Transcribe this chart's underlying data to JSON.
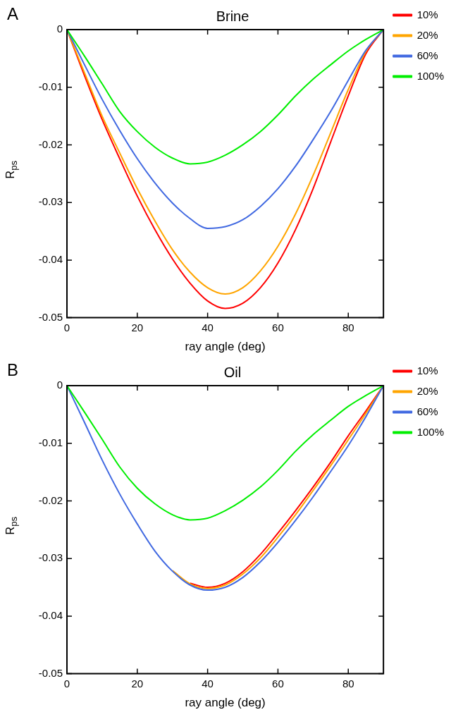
{
  "chart_data": [
    {
      "type": "line",
      "title": "Brine",
      "xlabel": "ray angle (deg)",
      "ylabel": "R$_{ps}$",
      "annotations": [
        "A"
      ],
      "x": [
        0,
        5,
        10,
        15,
        20,
        25,
        30,
        35,
        40,
        45,
        50,
        55,
        60,
        65,
        70,
        75,
        80,
        85,
        90
      ],
      "series": [
        {
          "name": "10%",
          "color": "#ff0000",
          "values": [
            0,
            -0.008,
            -0.0156,
            -0.0224,
            -0.0289,
            -0.0347,
            -0.0398,
            -0.044,
            -0.0471,
            -0.0484,
            -0.0475,
            -0.0448,
            -0.0405,
            -0.0347,
            -0.0276,
            -0.0195,
            -0.0115,
            -0.0042,
            0
          ]
        },
        {
          "name": "20%",
          "color": "#ffa500",
          "values": [
            0,
            -0.0075,
            -0.015,
            -0.0214,
            -0.0276,
            -0.0332,
            -0.0382,
            -0.0421,
            -0.0448,
            -0.0459,
            -0.0448,
            -0.0419,
            -0.0376,
            -0.032,
            -0.0253,
            -0.0179,
            -0.0104,
            -0.0038,
            0
          ]
        },
        {
          "name": "60%",
          "color": "#4169e1",
          "values": [
            0,
            -0.0061,
            -0.0121,
            -0.0175,
            -0.0224,
            -0.0266,
            -0.0301,
            -0.0328,
            -0.0345,
            -0.0342,
            -0.033,
            -0.0307,
            -0.0276,
            -0.0237,
            -0.0191,
            -0.0142,
            -0.0088,
            -0.0036,
            0
          ]
        },
        {
          "name": "100%",
          "color": "#00ee00",
          "values": [
            0,
            -0.0046,
            -0.0094,
            -0.0142,
            -0.0177,
            -0.0204,
            -0.0223,
            -0.0233,
            -0.023,
            -0.0218,
            -0.02,
            -0.0177,
            -0.0148,
            -0.0115,
            -0.0086,
            -0.0061,
            -0.0037,
            -0.0017,
            0
          ]
        }
      ],
      "xlim": [
        0,
        90
      ],
      "xticks": [
        0,
        20,
        40,
        60,
        80
      ],
      "ylim": [
        -0.05,
        0
      ],
      "yticks": [
        -0.05,
        -0.04,
        -0.03,
        -0.02,
        -0.01,
        0
      ],
      "grid": false,
      "legend": "right",
      "marker": "none",
      "line_style": "solid"
    },
    {
      "type": "line",
      "title": "Oil",
      "xlabel": "ray angle (deg)",
      "ylabel": "R$_{ps}$",
      "annotations": [
        "B"
      ],
      "x": [
        0,
        5,
        10,
        15,
        20,
        25,
        30,
        35,
        40,
        45,
        50,
        55,
        60,
        65,
        70,
        75,
        80,
        85,
        90
      ],
      "series": [
        {
          "name": "10%",
          "color": "#ff0000",
          "values": [
            null,
            null,
            null,
            null,
            null,
            null,
            null,
            -0.0343,
            -0.035,
            -0.0343,
            -0.0323,
            -0.0293,
            -0.0256,
            -0.0217,
            -0.0176,
            -0.0133,
            -0.0087,
            -0.0044,
            0
          ]
        },
        {
          "name": "20%",
          "color": "#ffa500",
          "values": [
            null,
            null,
            null,
            null,
            null,
            null,
            -0.0321,
            -0.0344,
            -0.0352,
            -0.0346,
            -0.0327,
            -0.0299,
            -0.0263,
            -0.0224,
            -0.0182,
            -0.0139,
            -0.0094,
            -0.0048,
            0
          ]
        },
        {
          "name": "60%",
          "color": "#4169e1",
          "values": [
            0,
            -0.0064,
            -0.0129,
            -0.0188,
            -0.024,
            -0.0287,
            -0.0322,
            -0.0346,
            -0.0355,
            -0.035,
            -0.0333,
            -0.0306,
            -0.0272,
            -0.0234,
            -0.0193,
            -0.0149,
            -0.0104,
            -0.0054,
            0
          ]
        },
        {
          "name": "100%",
          "color": "#00ee00",
          "values": [
            0,
            -0.0046,
            -0.0093,
            -0.0141,
            -0.0178,
            -0.0205,
            -0.0224,
            -0.0233,
            -0.023,
            -0.0217,
            -0.0199,
            -0.0176,
            -0.0147,
            -0.0114,
            -0.0085,
            -0.006,
            -0.0036,
            -0.0017,
            0
          ]
        }
      ],
      "xlim": [
        0,
        90
      ],
      "xticks": [
        0,
        20,
        40,
        60,
        80
      ],
      "ylim": [
        -0.05,
        0
      ],
      "yticks": [
        -0.05,
        -0.04,
        -0.03,
        -0.02,
        -0.01,
        0
      ],
      "grid": false,
      "legend": "right",
      "marker": "none",
      "line_style": "solid"
    }
  ]
}
